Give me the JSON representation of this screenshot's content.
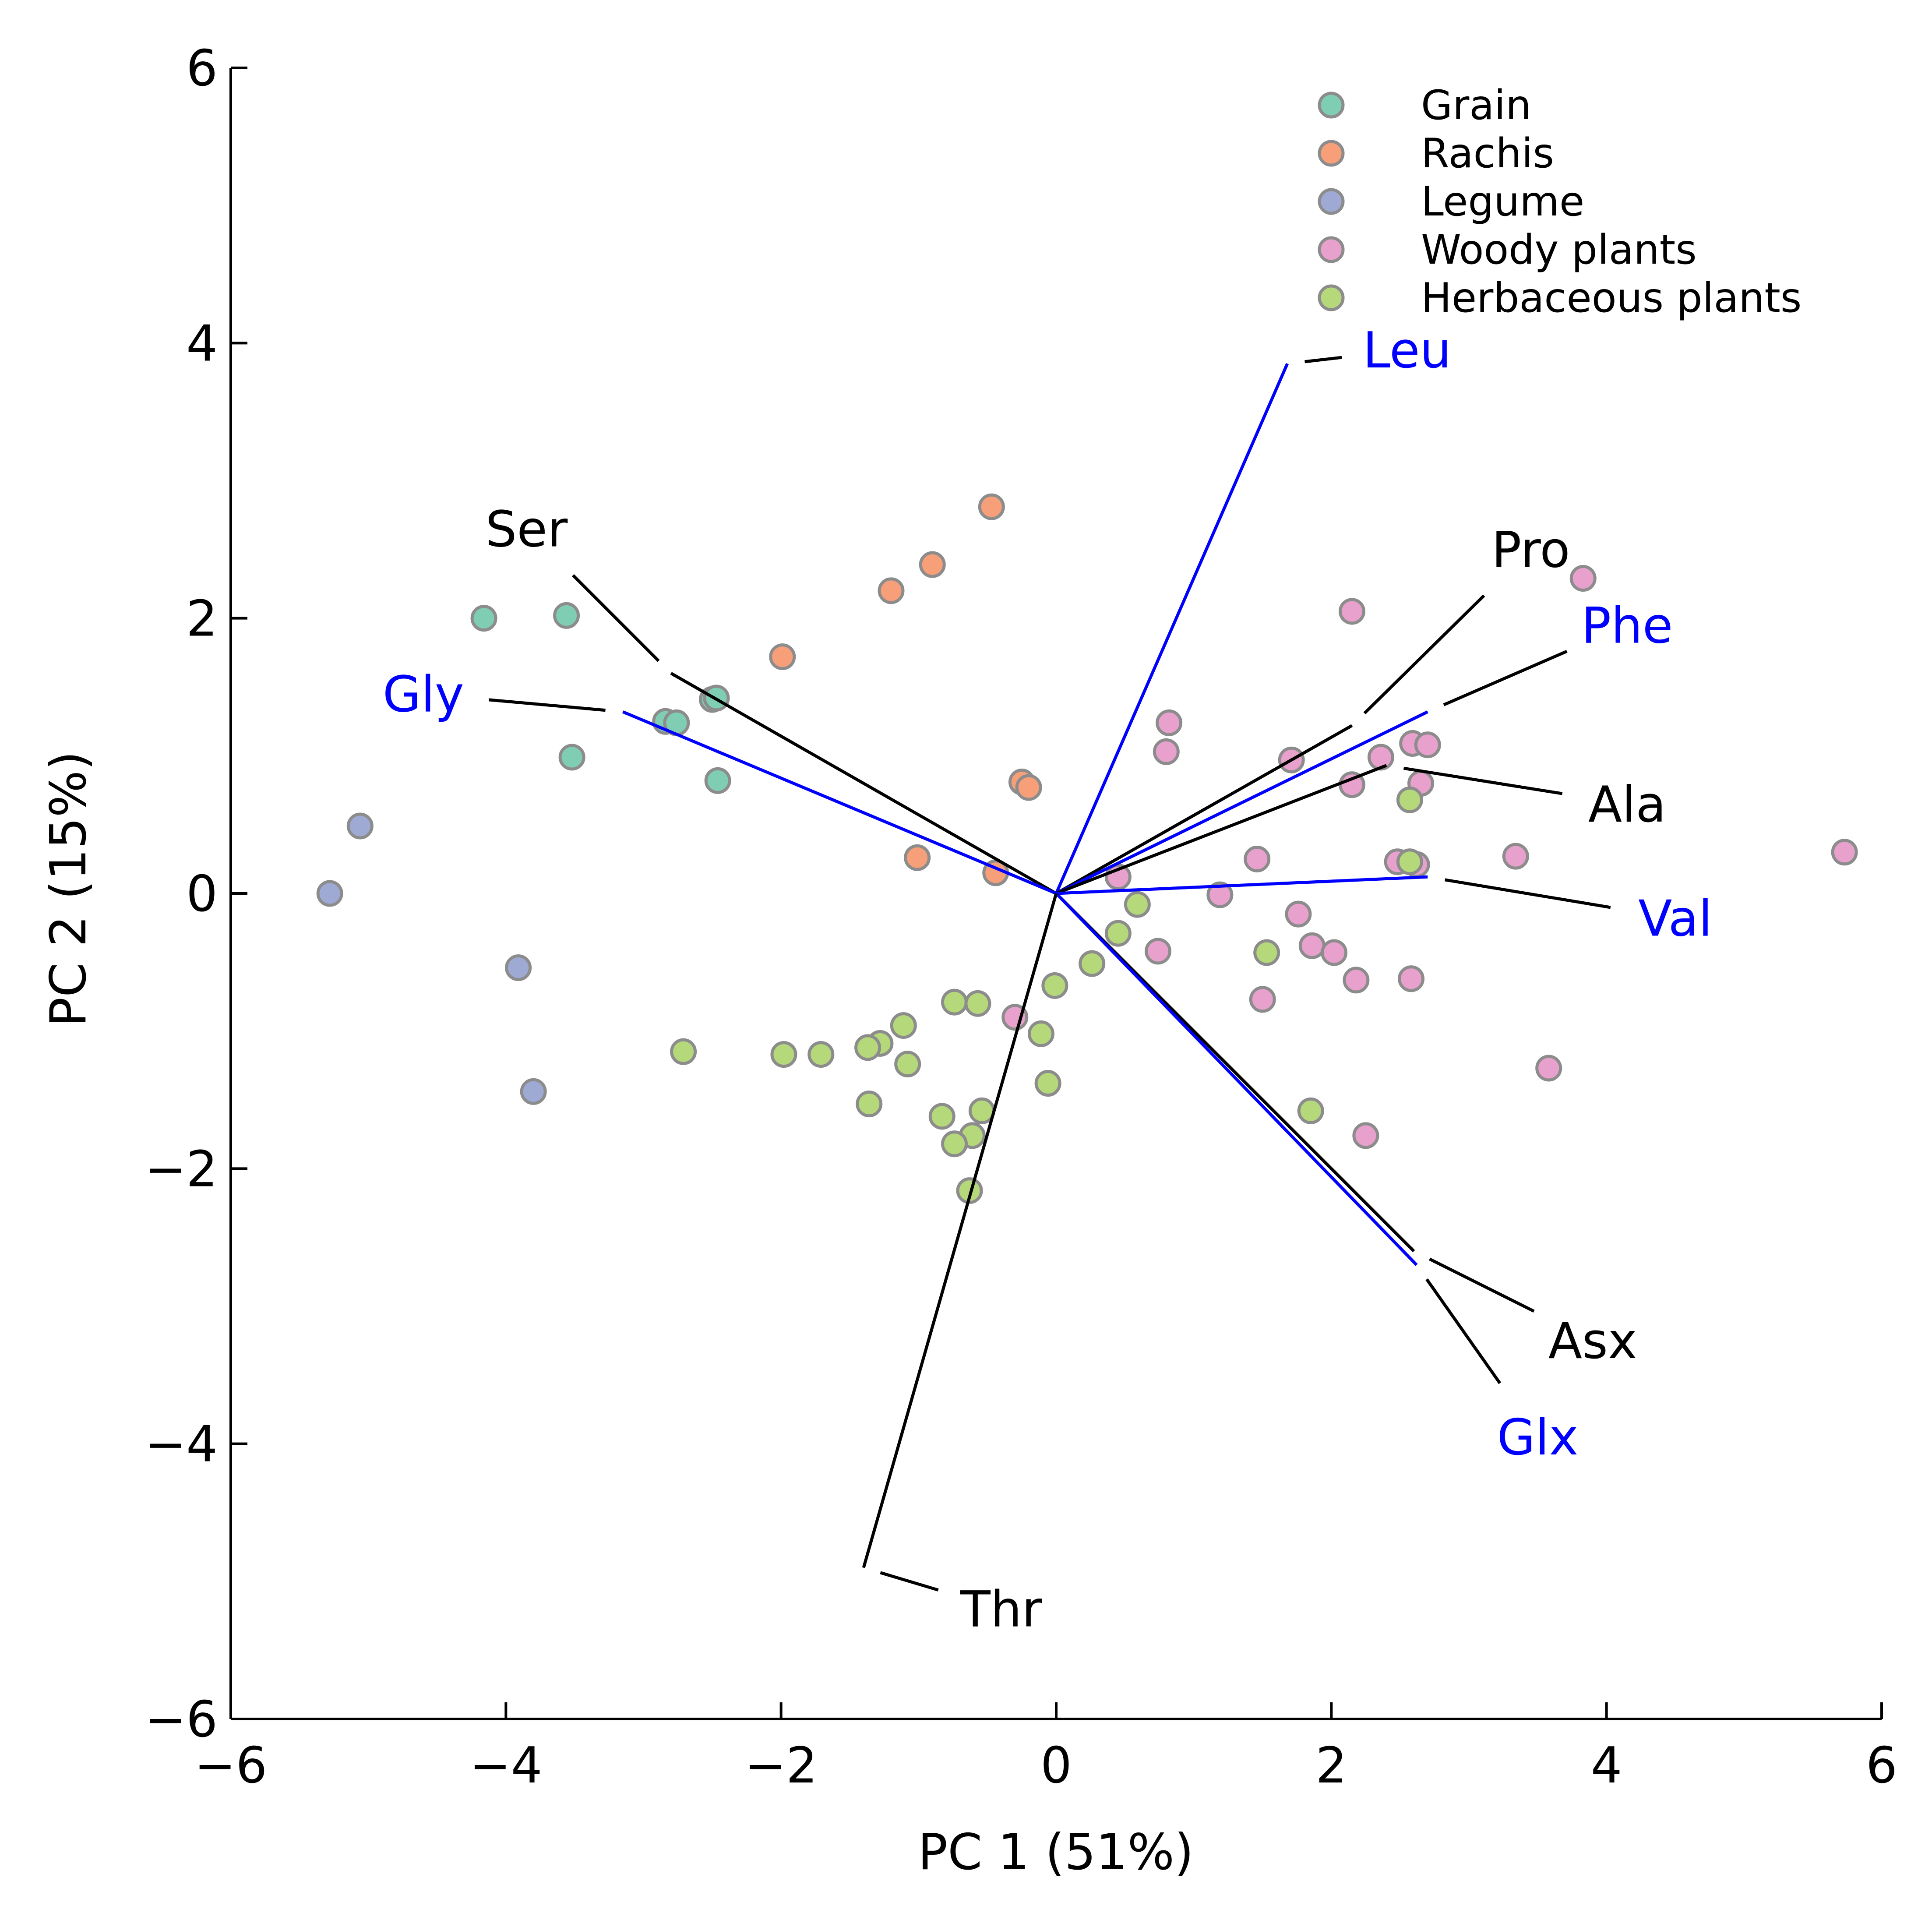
{
  "chart_data": {
    "type": "scatter",
    "title": "",
    "xlabel": "PC 1 (51%)",
    "ylabel": "PC 2 (15%)",
    "xlim": [
      -6,
      6
    ],
    "ylim": [
      -6,
      6
    ],
    "xticks": [
      -6,
      -4,
      -2,
      0,
      2,
      4,
      6
    ],
    "yticks": [
      -6,
      -4,
      -2,
      0,
      2,
      4,
      6
    ],
    "xtick_labels": [
      "−6",
      "−4",
      "−2",
      "0",
      "2",
      "4",
      "6"
    ],
    "ytick_labels": [
      "−6",
      "−4",
      "−2",
      "0",
      "2",
      "4",
      "6"
    ],
    "grid": false,
    "legend_position": "top-right",
    "series": [
      {
        "name": "Grain",
        "color": "#7fcdb3",
        "points": [
          [
            -4.16,
            2.0
          ],
          [
            -3.56,
            2.02
          ],
          [
            -3.52,
            0.99
          ],
          [
            -2.84,
            1.25
          ],
          [
            -2.76,
            1.24
          ],
          [
            -2.5,
            1.41
          ],
          [
            -2.47,
            1.42
          ],
          [
            -2.46,
            0.82
          ]
        ]
      },
      {
        "name": "Rachis",
        "color": "#f79f79",
        "points": [
          [
            -0.47,
            2.81
          ],
          [
            -0.9,
            2.39
          ],
          [
            -1.2,
            2.2
          ],
          [
            -1.99,
            1.72
          ],
          [
            -0.25,
            0.81
          ],
          [
            -0.2,
            0.77
          ],
          [
            -1.01,
            0.26
          ],
          [
            -0.44,
            0.15
          ]
        ]
      },
      {
        "name": "Legume",
        "color": "#9eaad4",
        "points": [
          [
            -5.06,
            0.49
          ],
          [
            -5.28,
            0.0
          ],
          [
            -3.91,
            -0.54
          ],
          [
            -3.8,
            -1.44
          ]
        ]
      },
      {
        "name": "Woody plants",
        "color": "#e8a1cc",
        "points": [
          [
            2.15,
            2.05
          ],
          [
            3.83,
            2.29
          ],
          [
            0.82,
            1.24
          ],
          [
            0.8,
            1.03
          ],
          [
            1.71,
            0.97
          ],
          [
            2.36,
            0.99
          ],
          [
            2.15,
            0.79
          ],
          [
            2.59,
            1.09
          ],
          [
            2.7,
            1.08
          ],
          [
            2.65,
            0.8
          ],
          [
            1.46,
            0.25
          ],
          [
            2.48,
            0.23
          ],
          [
            2.62,
            0.21
          ],
          [
            3.34,
            0.27
          ],
          [
            5.73,
            0.3
          ],
          [
            0.45,
            0.12
          ],
          [
            1.19,
            -0.01
          ],
          [
            1.76,
            -0.15
          ],
          [
            0.74,
            -0.42
          ],
          [
            1.86,
            -0.38
          ],
          [
            2.02,
            -0.43
          ],
          [
            2.18,
            -0.63
          ],
          [
            2.58,
            -0.62
          ],
          [
            1.5,
            -0.77
          ],
          [
            -0.3,
            -0.9
          ],
          [
            3.58,
            -1.27
          ],
          [
            2.25,
            -1.76
          ]
        ]
      },
      {
        "name": "Herbaceous plants",
        "color": "#b5d97a",
        "points": [
          [
            2.57,
            0.68
          ],
          [
            2.57,
            0.23
          ],
          [
            0.59,
            -0.08
          ],
          [
            0.45,
            -0.29
          ],
          [
            1.53,
            -0.43
          ],
          [
            0.26,
            -0.51
          ],
          [
            -0.01,
            -0.67
          ],
          [
            -0.74,
            -0.79
          ],
          [
            -0.57,
            -0.8
          ],
          [
            -0.11,
            -1.02
          ],
          [
            -1.11,
            -0.96
          ],
          [
            -1.28,
            -1.09
          ],
          [
            -1.37,
            -1.12
          ],
          [
            -2.71,
            -1.15
          ],
          [
            -1.98,
            -1.17
          ],
          [
            -1.71,
            -1.17
          ],
          [
            -1.08,
            -1.24
          ],
          [
            -0.06,
            -1.38
          ],
          [
            -1.36,
            -1.53
          ],
          [
            -0.83,
            -1.62
          ],
          [
            -0.54,
            -1.58
          ],
          [
            -0.61,
            -1.76
          ],
          [
            -0.74,
            -1.82
          ],
          [
            -0.63,
            -2.16
          ],
          [
            1.85,
            -1.58
          ]
        ]
      }
    ],
    "loadings": [
      {
        "name": "Leu",
        "x": 1.68,
        "y": 3.85,
        "color": "#0000ff",
        "label_x": 2.55,
        "label_y": 3.95
      },
      {
        "name": "Ser",
        "x": -2.8,
        "y": 1.6,
        "color": "#000000",
        "label_x": -3.85,
        "label_y": 2.65
      },
      {
        "name": "Gly",
        "x": -3.15,
        "y": 1.32,
        "color": "#0000ff",
        "label_x": -4.6,
        "label_y": 1.45
      },
      {
        "name": "Pro",
        "x": 2.15,
        "y": 1.22,
        "color": "#000000",
        "label_x": 3.45,
        "label_y": 2.5
      },
      {
        "name": "Phe",
        "x": 2.7,
        "y": 1.32,
        "color": "#0000ff",
        "label_x": 4.15,
        "label_y": 1.95
      },
      {
        "name": "Ala",
        "x": 2.4,
        "y": 0.93,
        "color": "#000000",
        "label_x": 4.15,
        "label_y": 0.65
      },
      {
        "name": "Val",
        "x": 2.7,
        "y": 0.12,
        "color": "#0000ff",
        "label_x": 4.5,
        "label_y": -0.18
      },
      {
        "name": "Asx",
        "x": 2.6,
        "y": -2.6,
        "color": "#000000",
        "label_x": 3.9,
        "label_y": -3.25
      },
      {
        "name": "Glx",
        "x": 2.62,
        "y": -2.7,
        "color": "#0000ff",
        "label_x": 3.5,
        "label_y": -3.95
      },
      {
        "name": "Thr",
        "x": -1.4,
        "y": -4.9,
        "color": "#000000",
        "label_x": -0.4,
        "label_y": -5.2
      }
    ]
  }
}
